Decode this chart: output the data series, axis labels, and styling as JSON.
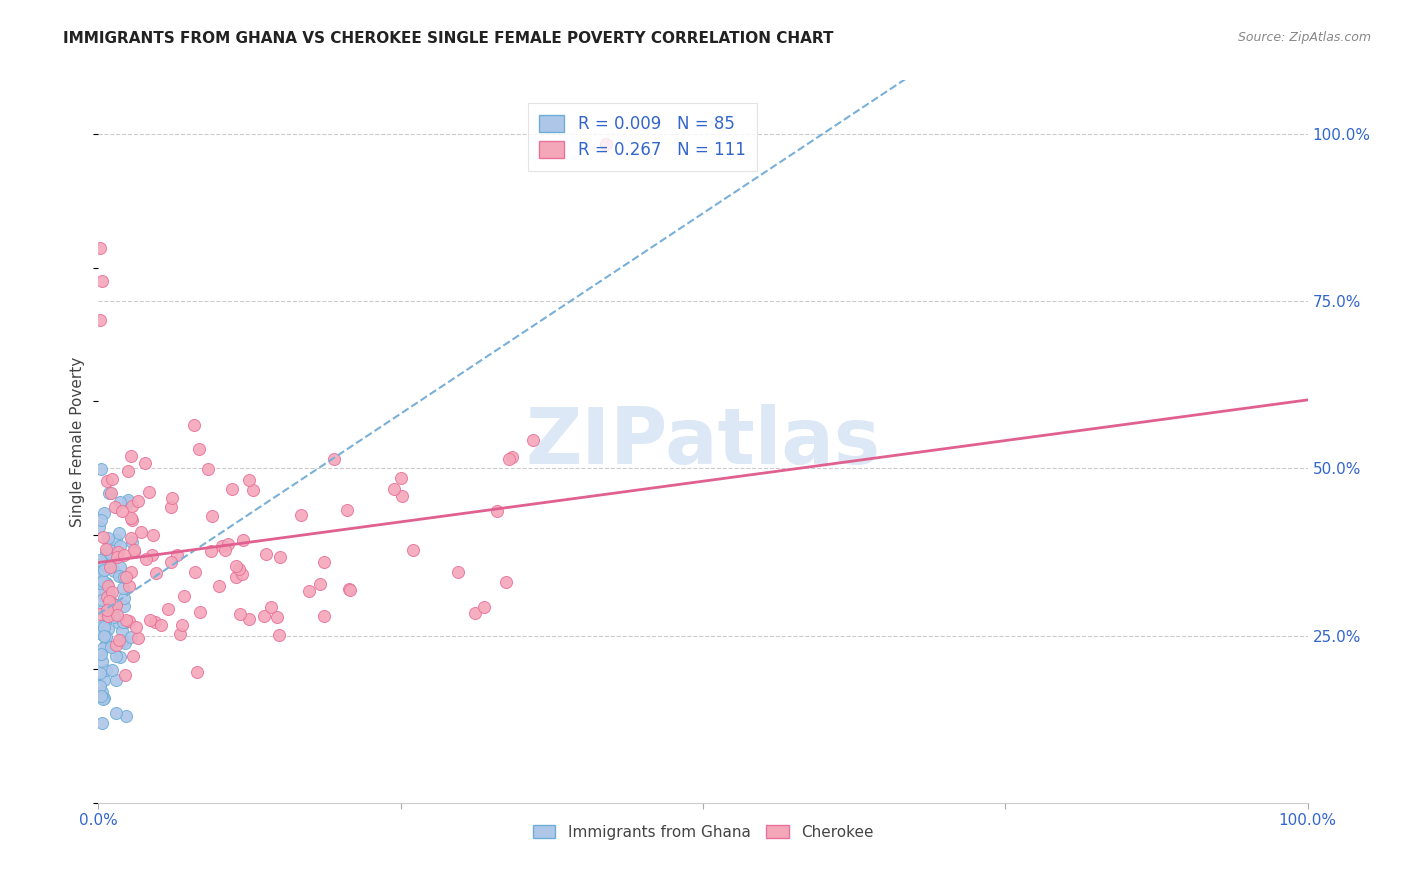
{
  "title": "IMMIGRANTS FROM GHANA VS CHEROKEE SINGLE FEMALE POVERTY CORRELATION CHART",
  "source": "Source: ZipAtlas.com",
  "ylabel": "Single Female Poverty",
  "legend_label1": "Immigrants from Ghana",
  "legend_label2": "Cherokee",
  "r1": "0.009",
  "n1": "85",
  "r2": "0.267",
  "n2": "111",
  "color_ghana_fill": "#aec6e8",
  "color_ghana_edge": "#6baed6",
  "color_cherokee_fill": "#f4a7b9",
  "color_cherokee_edge": "#e8729a",
  "color_line_ghana": "#7ab0d8",
  "color_line_cherokee": "#e06090",
  "color_blue_text": "#3366cc",
  "color_title": "#222222",
  "color_source": "#888888",
  "color_ylabel": "#444444",
  "color_grid": "#cccccc",
  "color_watermark": "#dce8f5",
  "background_color": "#ffffff",
  "watermark_text": "ZIPatlas",
  "xlim": [
    0.0,
    1.0
  ],
  "ylim": [
    0.0,
    1.08
  ],
  "ytick_positions": [
    0.25,
    0.5,
    0.75,
    1.0
  ],
  "ytick_labels": [
    "25.0%",
    "50.0%",
    "75.0%",
    "100.0%"
  ],
  "xtick_positions": [
    0.0,
    0.25,
    0.5,
    0.75,
    1.0
  ],
  "xtick_labels_show": {
    "0.0": "0.0%",
    "1.0": "100.0%"
  }
}
